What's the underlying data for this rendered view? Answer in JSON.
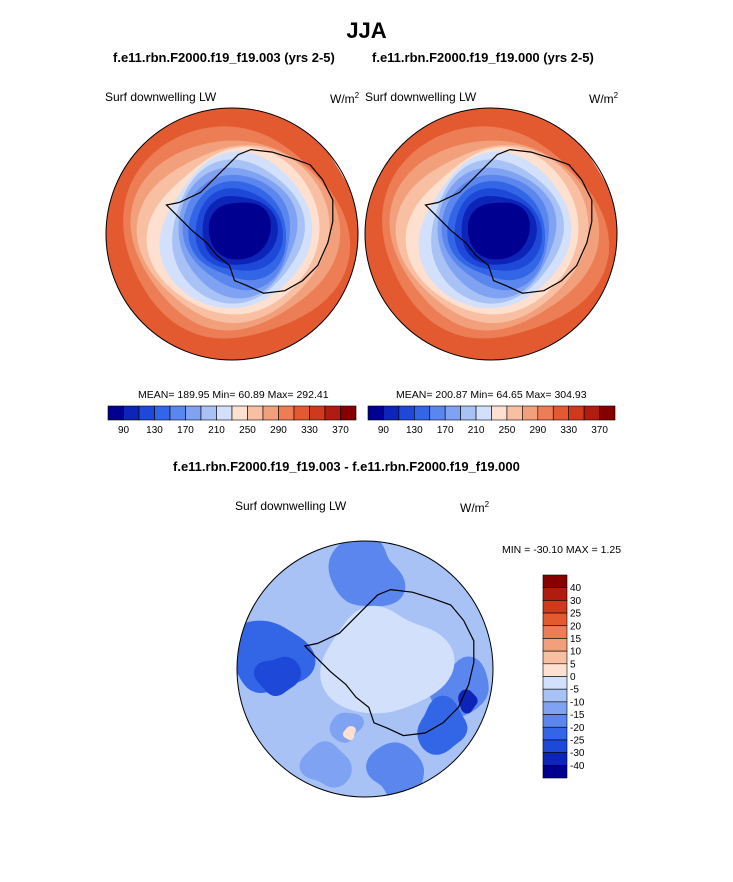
{
  "header": {
    "title": "JJA"
  },
  "panels": [
    {
      "title": "f.e11.rbn.F2000.f19_f19.003 (yrs 2-5)",
      "variable": "Surf downwelling LW",
      "units_base": "W/m",
      "units_sup": "2",
      "stats": "MEAN= 189.95  Min=  60.89  Max= 292.41"
    },
    {
      "title": "f.e11.rbn.F2000.f19_f19.000 (yrs 2-5)",
      "variable": "Surf downwelling LW",
      "units_base": "W/m",
      "units_sup": "2",
      "stats": "MEAN= 200.87  Min=  64.65  Max= 304.93"
    },
    {
      "title": "f.e11.rbn.F2000.f19_f19.003 - f.e11.rbn.F2000.f19_f19.000",
      "variable": "Surf downwelling LW",
      "units_base": "W/m",
      "units_sup": "2",
      "stats": "MIN = -30.10 MAX =   1.25"
    }
  ],
  "chart_data": [
    {
      "type": "heatmap",
      "projection": "south-polar-stereographic",
      "title": "f.e11.rbn.F2000.f19_f19.003 (yrs 2-5)",
      "variable": "Surf downwelling LW",
      "units": "W/m2",
      "mean": 189.95,
      "min": 60.89,
      "max": 292.41,
      "contour_levels": [
        90,
        110,
        130,
        150,
        170,
        190,
        210,
        230,
        250,
        270,
        290,
        310,
        330,
        350,
        370
      ],
      "colorbar_labels": [
        "90",
        "130",
        "170",
        "210",
        "250",
        "290",
        "330",
        "370"
      ],
      "colors": [
        "#000090",
        "#0d24b8",
        "#1e48d8",
        "#3366e6",
        "#5a86ee",
        "#7fa2f2",
        "#a8c2f6",
        "#d2e0fb",
        "#fde0d0",
        "#f8bfa2",
        "#f2a07c",
        "#ec7d55",
        "#e35a30",
        "#cf3a1c",
        "#b01c10",
        "#870000"
      ]
    },
    {
      "type": "heatmap",
      "projection": "south-polar-stereographic",
      "title": "f.e11.rbn.F2000.f19_f19.000 (yrs 2-5)",
      "variable": "Surf downwelling LW",
      "units": "W/m2",
      "mean": 200.87,
      "min": 64.65,
      "max": 304.93,
      "contour_levels": [
        90,
        110,
        130,
        150,
        170,
        190,
        210,
        230,
        250,
        270,
        290,
        310,
        330,
        350,
        370
      ],
      "colorbar_labels": [
        "90",
        "130",
        "170",
        "210",
        "250",
        "290",
        "330",
        "370"
      ],
      "colors": [
        "#000090",
        "#0d24b8",
        "#1e48d8",
        "#3366e6",
        "#5a86ee",
        "#7fa2f2",
        "#a8c2f6",
        "#d2e0fb",
        "#fde0d0",
        "#f8bfa2",
        "#f2a07c",
        "#ec7d55",
        "#e35a30",
        "#cf3a1c",
        "#b01c10",
        "#870000"
      ]
    },
    {
      "type": "heatmap",
      "projection": "south-polar-stereographic",
      "title": "f.e11.rbn.F2000.f19_f19.003 - f.e11.rbn.F2000.f19_f19.000",
      "variable": "Surf downwelling LW",
      "units": "W/m2",
      "min": -30.1,
      "max": 1.25,
      "contour_levels": [
        -40,
        -30,
        -25,
        -20,
        -15,
        -10,
        -5,
        0,
        5,
        10,
        15,
        20,
        25,
        30,
        40
      ],
      "colorbar_labels": [
        "40",
        "30",
        "25",
        "20",
        "15",
        "10",
        "5",
        "0",
        "-5",
        "-10",
        "-15",
        "-20",
        "-25",
        "-30",
        "-40"
      ],
      "colors": [
        "#870000",
        "#b01c10",
        "#cf3a1c",
        "#e35a30",
        "#ec7d55",
        "#f2a07c",
        "#f8bfa2",
        "#fde0d0",
        "#d2e0fb",
        "#a8c2f6",
        "#7fa2f2",
        "#5a86ee",
        "#3366e6",
        "#1e48d8",
        "#0d24b8",
        "#000090"
      ]
    }
  ]
}
